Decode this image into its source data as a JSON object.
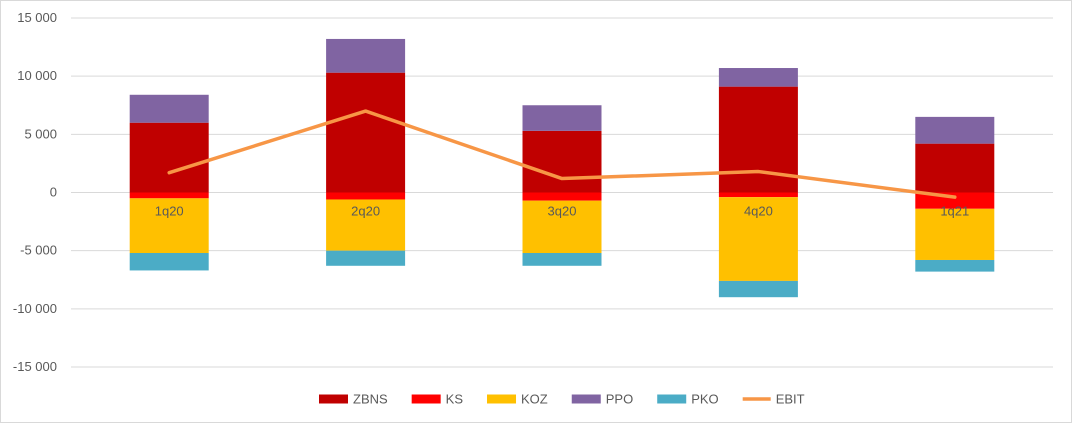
{
  "chart_data": {
    "type": "bar",
    "stacked": true,
    "categories": [
      "1q20",
      "2q20",
      "3q20",
      "4q20",
      "1q21"
    ],
    "ylim": [
      -15000,
      15000
    ],
    "yticks": [
      15000,
      10000,
      5000,
      0,
      -5000,
      -10000,
      -15000
    ],
    "ytick_labels": [
      "15 000",
      "10 000",
      "5 000",
      "0",
      "-5 000",
      "-10 000",
      "-15 000"
    ],
    "grid": true,
    "legend_position": "bottom",
    "series": [
      {
        "name": "ZBNS",
        "type": "bar",
        "color": "#C00000",
        "values": [
          6000,
          10300,
          5300,
          9100,
          4200
        ]
      },
      {
        "name": "KS",
        "type": "bar",
        "color": "#FF0000",
        "values": [
          -500,
          -600,
          -700,
          -400,
          -1400
        ]
      },
      {
        "name": "KOZ",
        "type": "bar",
        "color": "#FFC000",
        "values": [
          -4700,
          -4400,
          -4500,
          -7200,
          -4400
        ]
      },
      {
        "name": "PPO",
        "type": "bar",
        "color": "#8064A2",
        "values": [
          2400,
          2900,
          2200,
          1600,
          2300
        ]
      },
      {
        "name": "PKO",
        "type": "bar",
        "color": "#4BACC6",
        "values": [
          -1500,
          -1300,
          -1100,
          -1400,
          -1000
        ]
      },
      {
        "name": "EBIT",
        "type": "line",
        "color": "#F79646",
        "values": [
          1700,
          7000,
          1200,
          1800,
          -400
        ]
      }
    ]
  }
}
